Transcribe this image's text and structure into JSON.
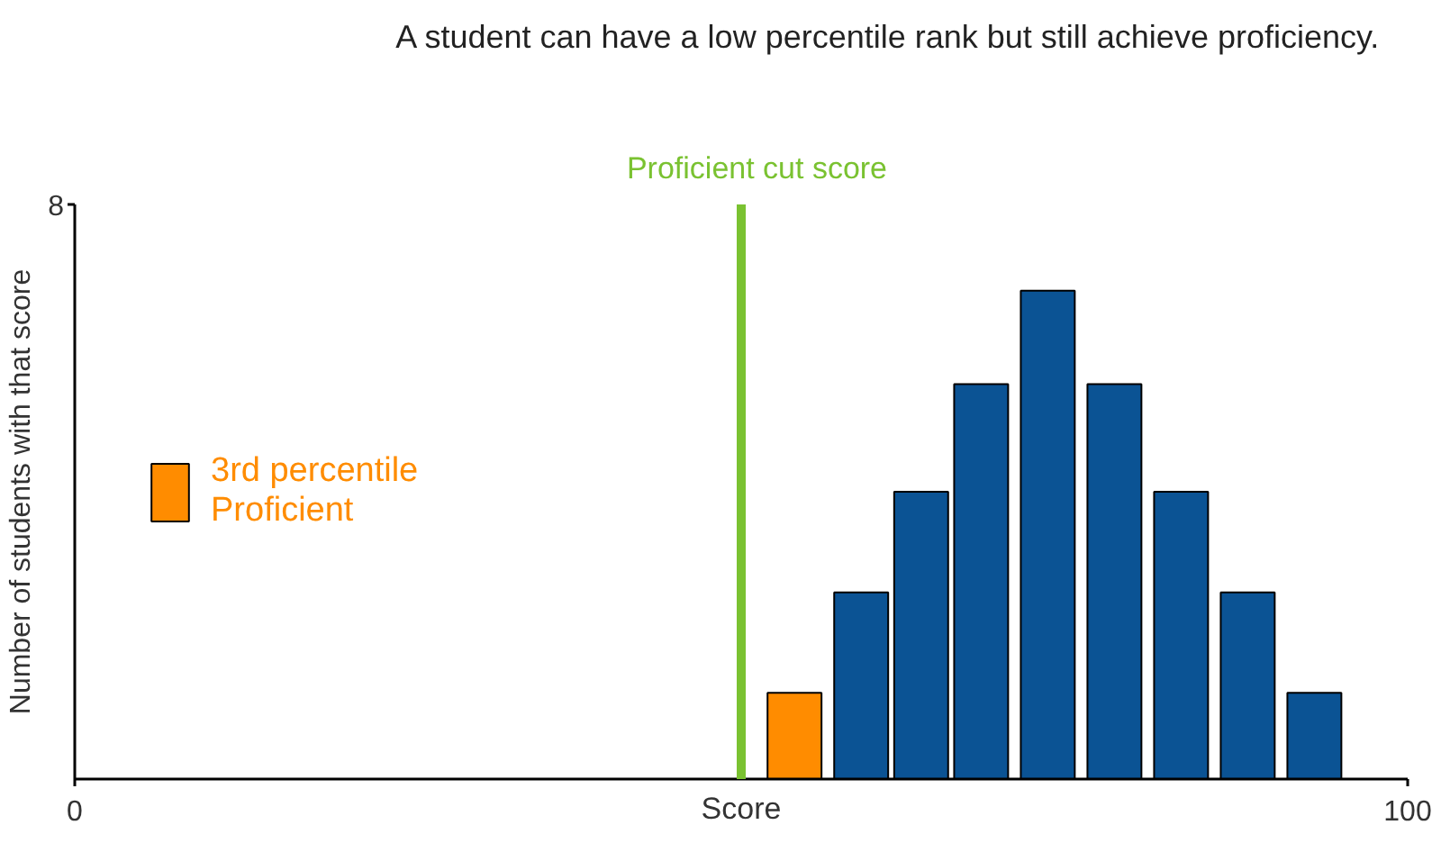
{
  "chart_data": {
    "type": "bar",
    "title": "A student can have a low percentile rank but still achieve proficiency.",
    "xlabel": "Score",
    "ylabel": "Number of students with that score",
    "xlim": [
      0,
      100
    ],
    "xticks": [
      0,
      100
    ],
    "ylim": [
      0,
      8
    ],
    "yticks": [
      8
    ],
    "legend": "left",
    "ref_lines": [
      {
        "axis": "x",
        "value": 50,
        "label": "Proficient cut score",
        "color": "#7ac231"
      }
    ],
    "series": [
      {
        "name": "3rd percentile\nProficient",
        "color": "#ff8c00",
        "x": [
          54
        ],
        "values": [
          1.2
        ]
      },
      {
        "color": "#0b5394",
        "x": [
          59,
          63.5,
          68,
          73,
          78,
          83,
          88,
          93
        ],
        "values": [
          2.6,
          4.0,
          5.5,
          6.8,
          5.5,
          4.0,
          2.6,
          1.2
        ]
      }
    ]
  }
}
